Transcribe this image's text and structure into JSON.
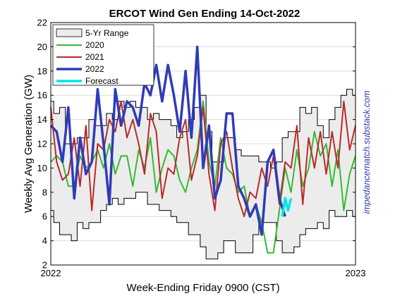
{
  "chart_data": {
    "type": "line",
    "title": "ERCOT Wind Gen Ending 14-Oct-2022",
    "xlabel": "Week-Ending Friday 0900 (CST)",
    "ylabel": "Weekly Avg Generation (GW)",
    "watermark": "impedancematch.substack.com",
    "xlim": [
      0,
      52
    ],
    "ylim": [
      2,
      22
    ],
    "yticks": [
      2,
      4,
      6,
      8,
      10,
      12,
      14,
      16,
      18,
      20,
      22
    ],
    "xticks": [
      {
        "value": 0,
        "label": "2022"
      },
      {
        "value": 52,
        "label": "2023"
      }
    ],
    "grid": true,
    "legend_position": "top-left",
    "range": {
      "name": "5-Yr Range",
      "upper": [
        15.5,
        14.5,
        15.0,
        12.0,
        12.0,
        12.5,
        12.5,
        14.0,
        13.5,
        13.5,
        14.5,
        14.0,
        15.5,
        15.0,
        15.5,
        15.0,
        15.0,
        14.0,
        14.5,
        14.0,
        14.0,
        13.5,
        12.5,
        13.0,
        14.0,
        15.0,
        16.0,
        13.0,
        10.5,
        10.5,
        12.5,
        12.5,
        11.5,
        11.0,
        11.0,
        11.0,
        10.5,
        10.5,
        10.0,
        10.5,
        12.5,
        13.0,
        13.0,
        15.0,
        14.5,
        15.0,
        13.5,
        12.5,
        14.0,
        15.0,
        16.0,
        16.5,
        16.0
      ],
      "lower": [
        6.5,
        5.5,
        4.5,
        4.5,
        4.0,
        5.5,
        5.0,
        5.5,
        5.5,
        6.5,
        7.0,
        7.5,
        7.0,
        7.5,
        7.5,
        8.0,
        8.0,
        7.0,
        7.0,
        6.5,
        6.5,
        6.0,
        5.5,
        5.5,
        4.5,
        4.5,
        3.5,
        2.5,
        2.5,
        3.0,
        4.0,
        4.0,
        3.0,
        3.0,
        3.0,
        4.5,
        5.5,
        5.5,
        5.5,
        4.0,
        3.0,
        3.0,
        3.5,
        4.5,
        5.0,
        5.0,
        5.5,
        5.0,
        6.5,
        6.0,
        6.0,
        6.5,
        6.0
      ]
    },
    "series": [
      {
        "name": "2020",
        "color": "#33bb33",
        "width": 2,
        "x": [
          0,
          1,
          2,
          3,
          4,
          5,
          6,
          7,
          8,
          9,
          10,
          11,
          12,
          13,
          14,
          15,
          16,
          17,
          18,
          19,
          20,
          21,
          22,
          23,
          24,
          25,
          26,
          27,
          28,
          29,
          30,
          31,
          32,
          33,
          34,
          35,
          36,
          37,
          38,
          39,
          40,
          41,
          42,
          43,
          44,
          45,
          46,
          47,
          48,
          49,
          50,
          51,
          52
        ],
        "values": [
          10.5,
          11.0,
          10.5,
          8.5,
          8.5,
          11.0,
          10.0,
          10.5,
          11.5,
          10.0,
          12.0,
          9.5,
          11.0,
          11.0,
          8.5,
          11.5,
          10.0,
          12.5,
          8.0,
          10.0,
          11.5,
          11.0,
          9.0,
          8.0,
          10.0,
          11.5,
          15.5,
          10.5,
          8.5,
          12.5,
          10.0,
          9.5,
          8.0,
          8.5,
          6.0,
          7.0,
          5.5,
          3.0,
          3.0,
          6.5,
          10.0,
          8.0,
          11.5,
          8.5,
          10.0,
          13.0,
          11.0,
          12.0,
          8.5,
          11.5,
          6.5,
          9.5,
          11.0
        ]
      },
      {
        "name": "2021",
        "color": "#bb2a2a",
        "width": 2,
        "x": [
          0,
          1,
          2,
          3,
          4,
          5,
          6,
          7,
          8,
          9,
          10,
          11,
          12,
          13,
          14,
          15,
          16,
          17,
          18,
          19,
          20,
          21,
          22,
          23,
          24,
          25,
          26,
          27,
          28,
          29,
          30,
          31,
          32,
          33,
          34,
          35,
          36,
          37,
          38,
          39,
          40,
          41,
          42,
          43,
          44,
          45,
          46,
          47,
          48,
          49,
          50,
          51,
          52
        ],
        "values": [
          15.0,
          10.5,
          9.0,
          9.5,
          12.5,
          8.5,
          13.5,
          6.5,
          12.0,
          11.5,
          14.0,
          13.0,
          15.5,
          12.5,
          14.0,
          12.0,
          9.5,
          14.5,
          13.0,
          7.5,
          10.0,
          9.5,
          12.5,
          14.0,
          9.0,
          11.0,
          15.0,
          9.5,
          6.5,
          12.0,
          13.0,
          10.0,
          7.5,
          6.0,
          8.0,
          7.5,
          10.0,
          8.5,
          11.0,
          7.0,
          10.5,
          10.0,
          13.5,
          7.0,
          12.5,
          10.0,
          13.0,
          9.5,
          13.0,
          10.0,
          15.5,
          11.5,
          13.5
        ]
      },
      {
        "name": "2022",
        "color": "#2f3bb8",
        "width": 3.5,
        "x": [
          0,
          1,
          2,
          3,
          4,
          5,
          6,
          7,
          8,
          9,
          10,
          11,
          12,
          13,
          14,
          15,
          16,
          17,
          18,
          19,
          20,
          21,
          22,
          23,
          24,
          25,
          26,
          27,
          28,
          29,
          30,
          31,
          32,
          33,
          34,
          35,
          36,
          37,
          38,
          39,
          40
        ],
        "values": [
          13.5,
          13.0,
          10.5,
          15.0,
          7.5,
          12.5,
          9.5,
          10.5,
          16.5,
          12.0,
          7.0,
          16.5,
          13.5,
          15.5,
          15.0,
          13.5,
          17.0,
          16.0,
          18.5,
          15.5,
          18.5,
          16.0,
          13.0,
          18.0,
          12.5,
          20.0,
          10.0,
          13.5,
          7.5,
          9.0,
          14.5,
          14.5,
          8.5,
          7.5,
          6.0,
          7.0,
          4.5,
          10.5,
          11.5,
          7.5,
          6.0
        ]
      },
      {
        "name": "Forecast",
        "color": "#00e5ee",
        "width": 3.5,
        "x": [
          39.5,
          40,
          40.5,
          41
        ],
        "values": [
          6.0,
          7.5,
          6.5,
          7.5
        ]
      }
    ]
  }
}
